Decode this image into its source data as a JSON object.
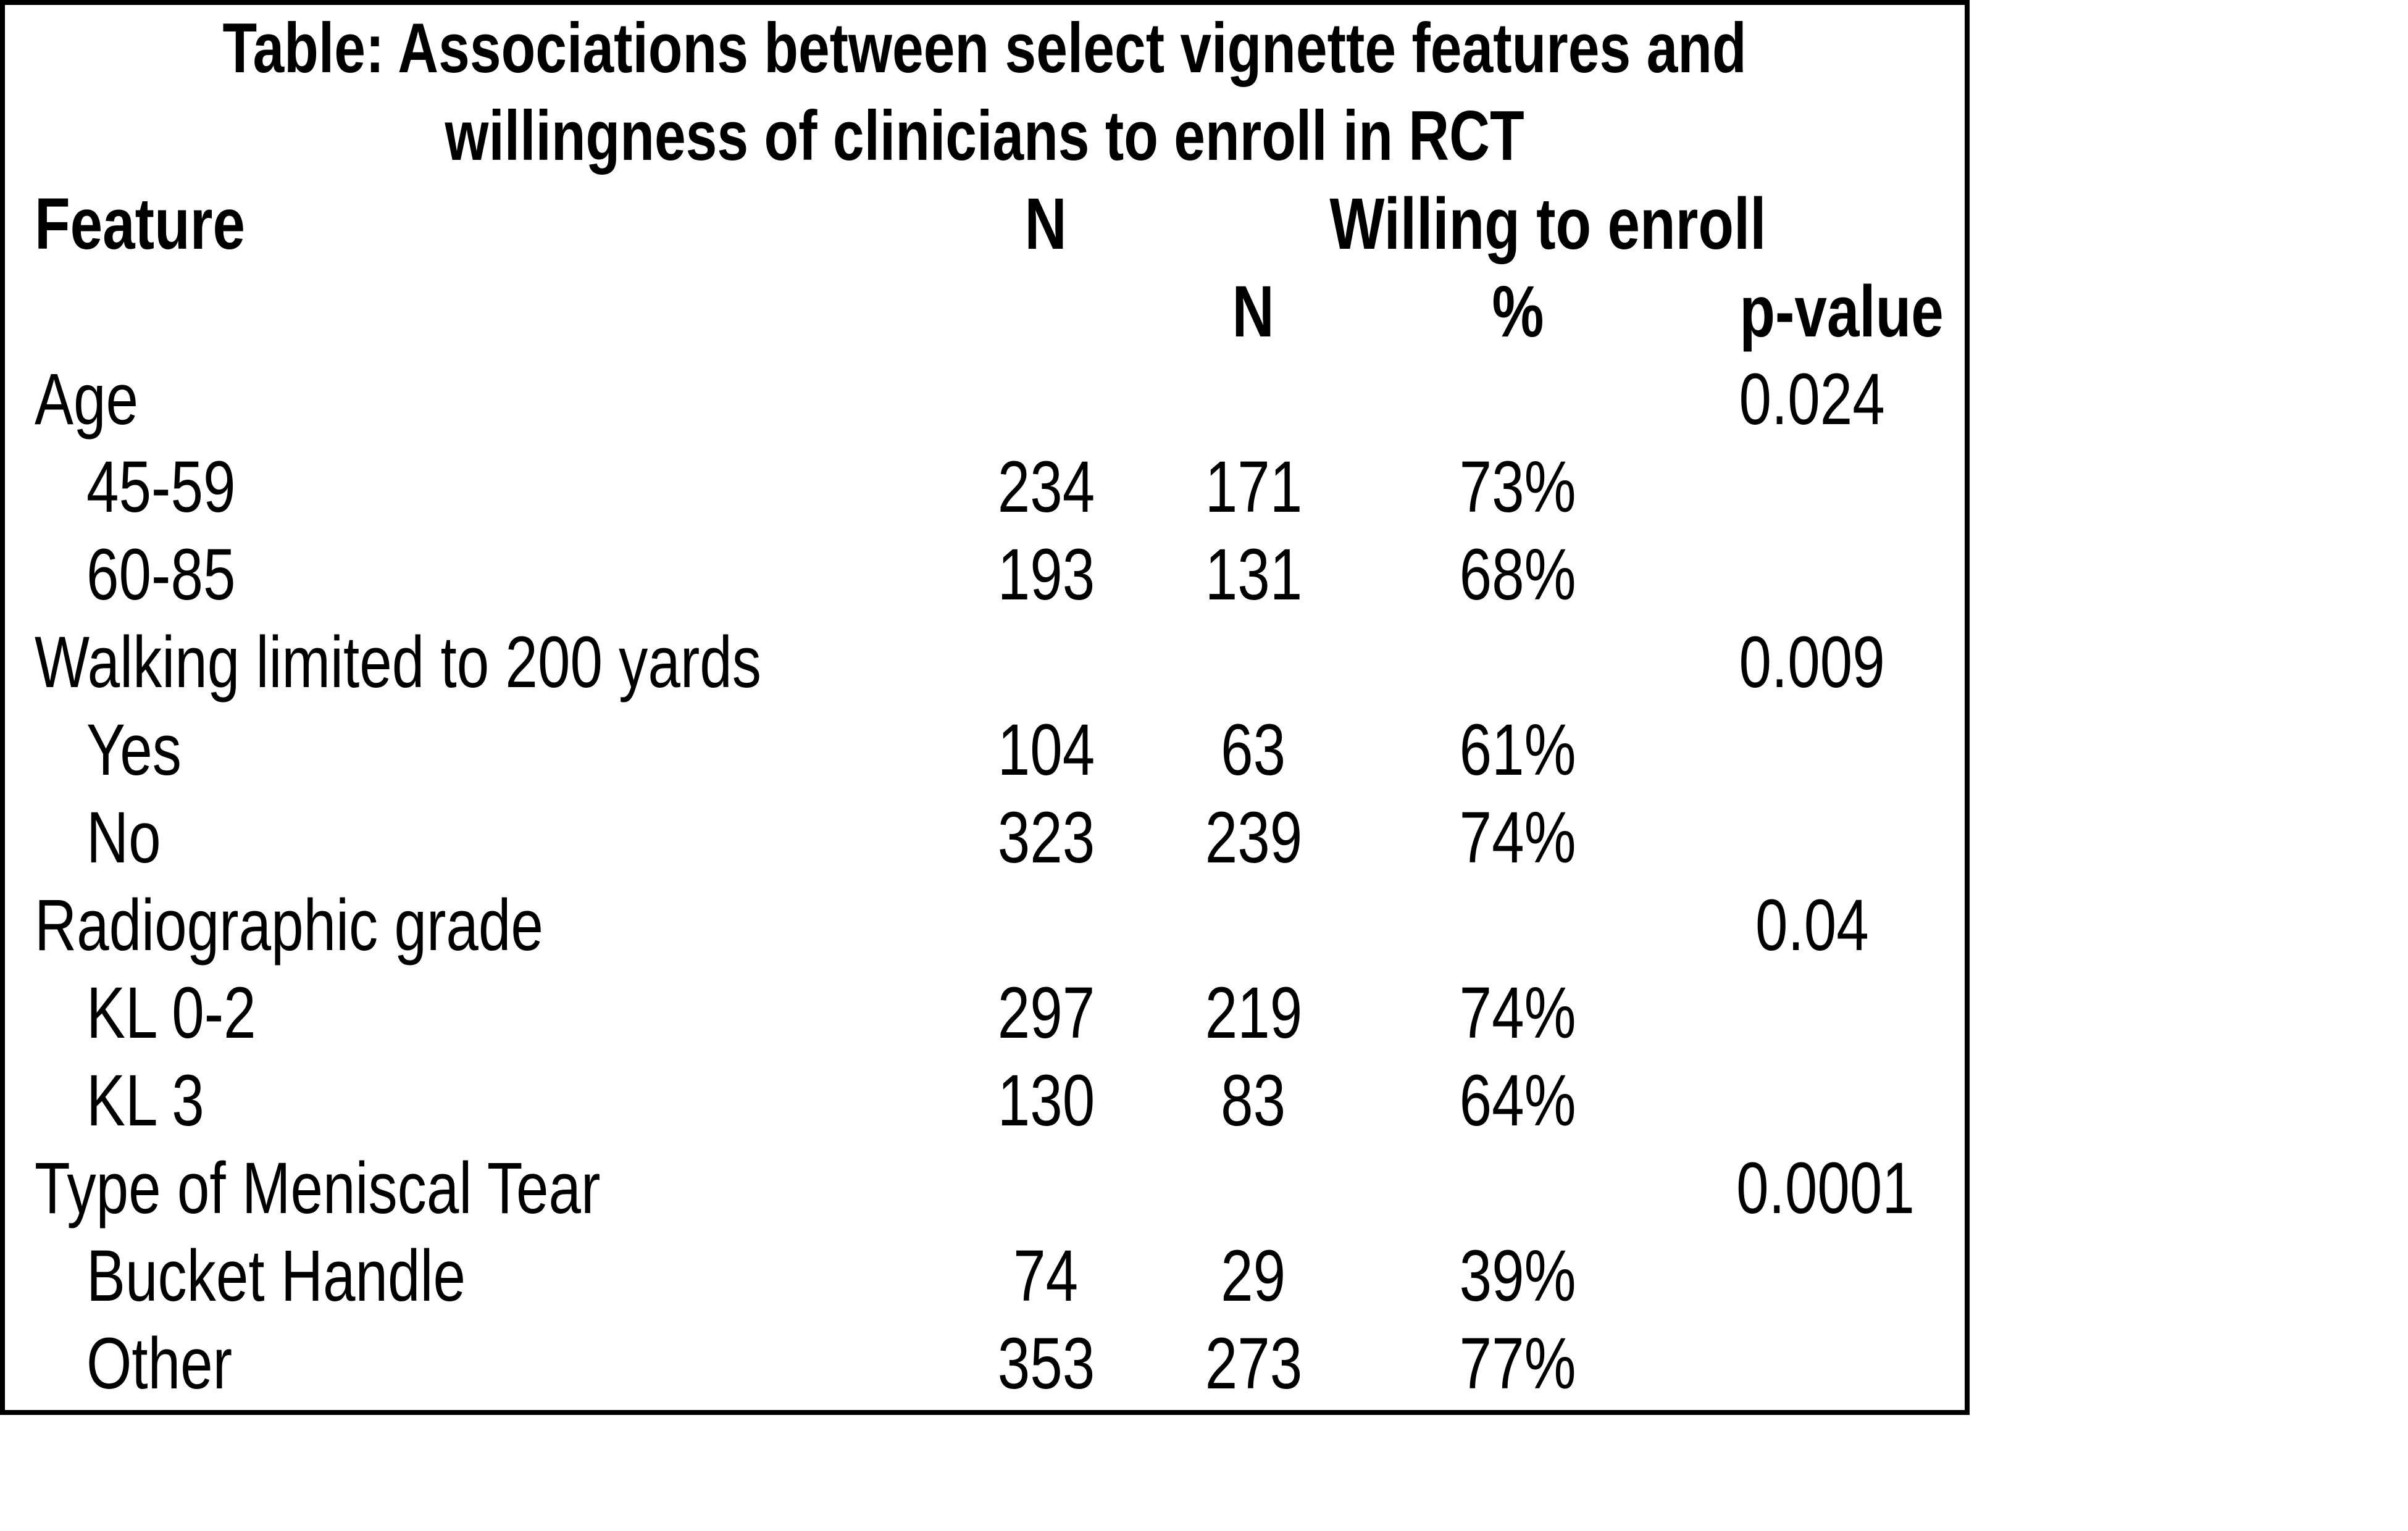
{
  "table": {
    "title_line1": "Table: Associations between select vignette features and",
    "title_line2": "willingness of clinicians to enroll in RCT",
    "headers": {
      "feature": "Feature",
      "n": "N",
      "willing_group": "Willing to enroll",
      "willing_n": "N",
      "willing_pct": "%",
      "p_value": "p-value"
    },
    "rows": [
      {
        "type": "category",
        "label": "Age",
        "n": "",
        "willing_n": "",
        "pct": "",
        "p": "0.024"
      },
      {
        "type": "item",
        "label": "45-59",
        "n": "234",
        "willing_n": "171",
        "pct": "73%",
        "p": ""
      },
      {
        "type": "item",
        "label": "60-85",
        "n": "193",
        "willing_n": "131",
        "pct": "68%",
        "p": ""
      },
      {
        "type": "category",
        "label": "Walking limited to 200 yards",
        "n": "",
        "willing_n": "",
        "pct": "",
        "p": "0.009"
      },
      {
        "type": "item",
        "label": "Yes",
        "n": "104",
        "willing_n": "63",
        "pct": "61%",
        "p": ""
      },
      {
        "type": "item",
        "label": "No",
        "n": "323",
        "willing_n": "239",
        "pct": "74%",
        "p": ""
      },
      {
        "type": "category",
        "label": "Radiographic grade",
        "n": "",
        "willing_n": "",
        "pct": "",
        "p": "0.04"
      },
      {
        "type": "item",
        "label": "KL 0-2",
        "n": "297",
        "willing_n": "219",
        "pct": "74%",
        "p": ""
      },
      {
        "type": "item",
        "label": "KL 3",
        "n": "130",
        "willing_n": "83",
        "pct": "64%",
        "p": ""
      },
      {
        "type": "category",
        "label": "Type of Meniscal Tear",
        "n": "",
        "willing_n": "",
        "pct": "",
        "p": "0.0001"
      },
      {
        "type": "item",
        "label": "Bucket Handle",
        "n": "74",
        "willing_n": "29",
        "pct": "39%",
        "p": ""
      },
      {
        "type": "item",
        "label": "Other",
        "n": "353",
        "willing_n": "273",
        "pct": "77%",
        "p": ""
      }
    ],
    "colors": {
      "border": "#000000",
      "text": "#000000",
      "background": "#ffffff"
    }
  }
}
